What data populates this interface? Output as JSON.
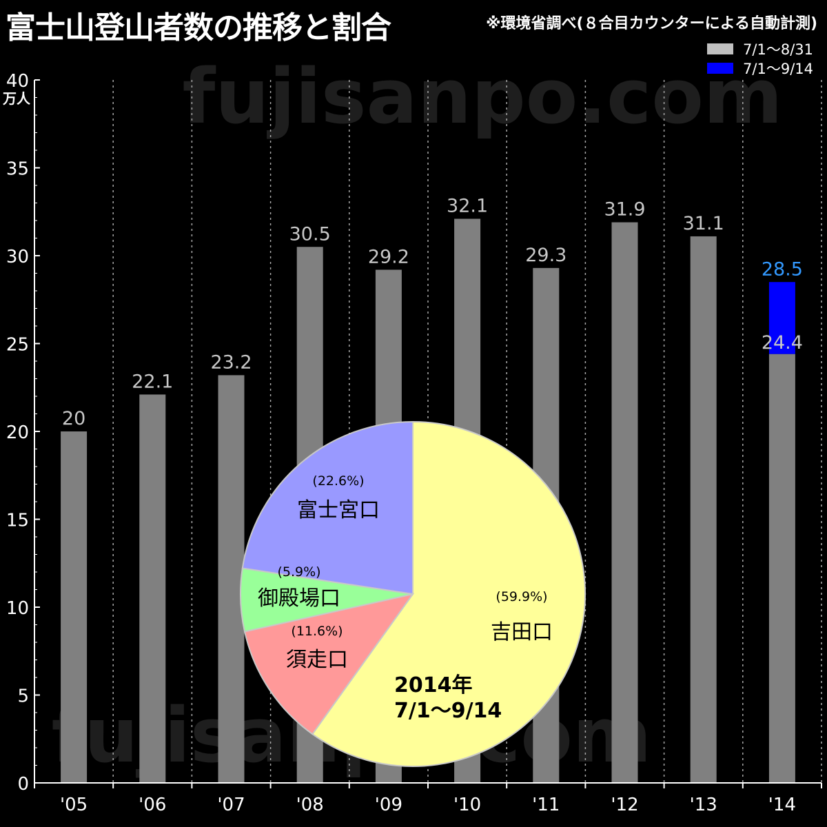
{
  "header": {
    "title": "富士山登山者数の推移と割合",
    "source": "※環境省調べ(８合目カウンターによる自動計測)"
  },
  "watermark": "fujisanpo.com",
  "chart_data": [
    {
      "type": "bar",
      "stacked": true,
      "categories": [
        "'05",
        "'06",
        "'07",
        "'08",
        "'09",
        "'10",
        "'11",
        "'12",
        "'13",
        "'14"
      ],
      "series": [
        {
          "name": "7/1～8/31",
          "color": "#808080",
          "label_color": "#c8c8c8",
          "values": [
            20,
            22.1,
            23.2,
            30.5,
            29.2,
            32.1,
            29.3,
            31.9,
            31.1,
            24.4
          ]
        },
        {
          "name": "7/1～9/14",
          "color": "#0000ff",
          "label_color": "#3399ff",
          "totals": [
            null,
            null,
            null,
            null,
            null,
            null,
            null,
            null,
            null,
            28.5
          ]
        }
      ],
      "ylim": [
        0,
        40
      ],
      "yticks": [
        0,
        5,
        10,
        15,
        20,
        25,
        30,
        35,
        40
      ],
      "yunit": "万人",
      "grid": "vertical-dotted",
      "legend": "top-right"
    },
    {
      "type": "pie",
      "title": "2014年\n7/1～9/14",
      "slices": [
        {
          "label": "吉田口",
          "value": 59.9,
          "pct": "(59.9%)",
          "color": "#ffff99"
        },
        {
          "label": "須走口",
          "value": 11.6,
          "pct": "(11.6%)",
          "color": "#ff9999"
        },
        {
          "label": "御殿場口",
          "value": 5.9,
          "pct": "(5.9%)",
          "color": "#99ff99"
        },
        {
          "label": "富士宮口",
          "value": 22.6,
          "pct": "(22.6%)",
          "color": "#9999ff"
        }
      ]
    }
  ]
}
